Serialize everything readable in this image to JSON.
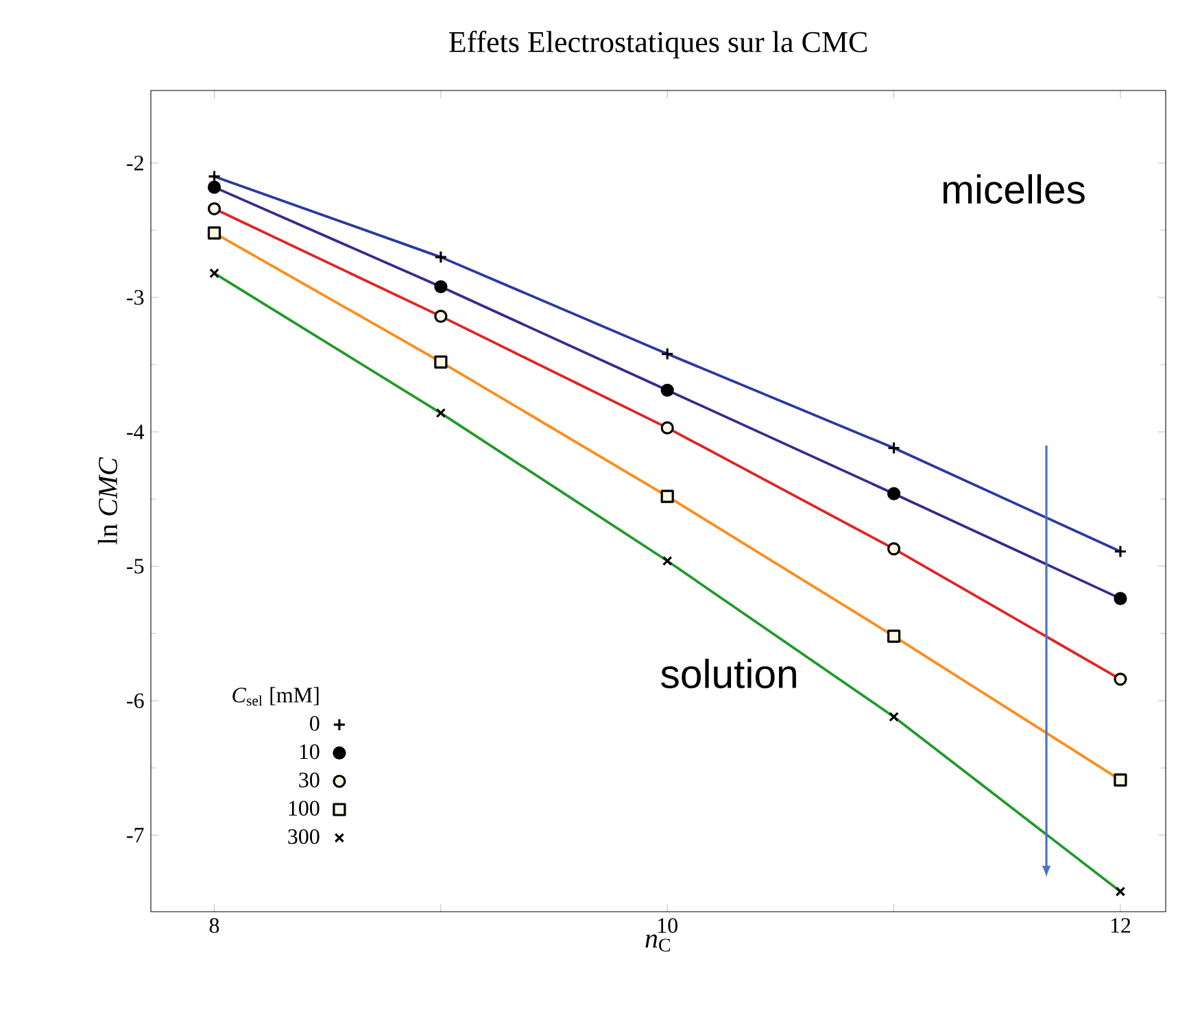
{
  "chart_data": {
    "type": "line",
    "title": "Effets Electrostatiques sur la CMC",
    "xlabel": "*n*$_{C}$",
    "ylabel": "ln *CMC*",
    "legend_title": "*C*$_{sel}$ [mM]",
    "legend": "bottom left",
    "line_style": "solid",
    "x": [
      8,
      9,
      10,
      11,
      12
    ],
    "xlim": [
      7.72,
      12.2
    ],
    "ylim": [
      -7.57,
      -1.46
    ],
    "xticks": [
      8,
      {
        "value": 9,
        "label": null
      },
      10,
      {
        "value": 11,
        "label": null
      },
      12
    ],
    "yticks": [
      -7,
      -6,
      -5,
      -4,
      -3,
      -2
    ],
    "annotations": [
      "micelles",
      "solution"
    ],
    "series": [
      {
        "name": "0",
        "color": "#2b3a9e",
        "marker": "plus",
        "values": [
          -2.1,
          -2.7,
          -3.42,
          -4.12,
          -4.89
        ]
      },
      {
        "name": "10",
        "color": "#3a2a8c",
        "marker": "circle",
        "values": [
          -2.18,
          -2.92,
          -3.69,
          -4.46,
          -5.24
        ]
      },
      {
        "name": "30",
        "color": "#e02424",
        "marker": "circle_open",
        "values": [
          -2.34,
          -3.14,
          -3.97,
          -4.87,
          -5.84
        ]
      },
      {
        "name": "100",
        "color": "#ff8c1a",
        "marker": "square",
        "values": [
          -2.52,
          -3.48,
          -4.48,
          -5.52,
          -6.59
        ]
      },
      {
        "name": "300",
        "color": "#22992a",
        "marker": "cross",
        "values": [
          -2.82,
          -3.86,
          -4.96,
          -6.12,
          -7.42
        ]
      }
    ]
  }
}
